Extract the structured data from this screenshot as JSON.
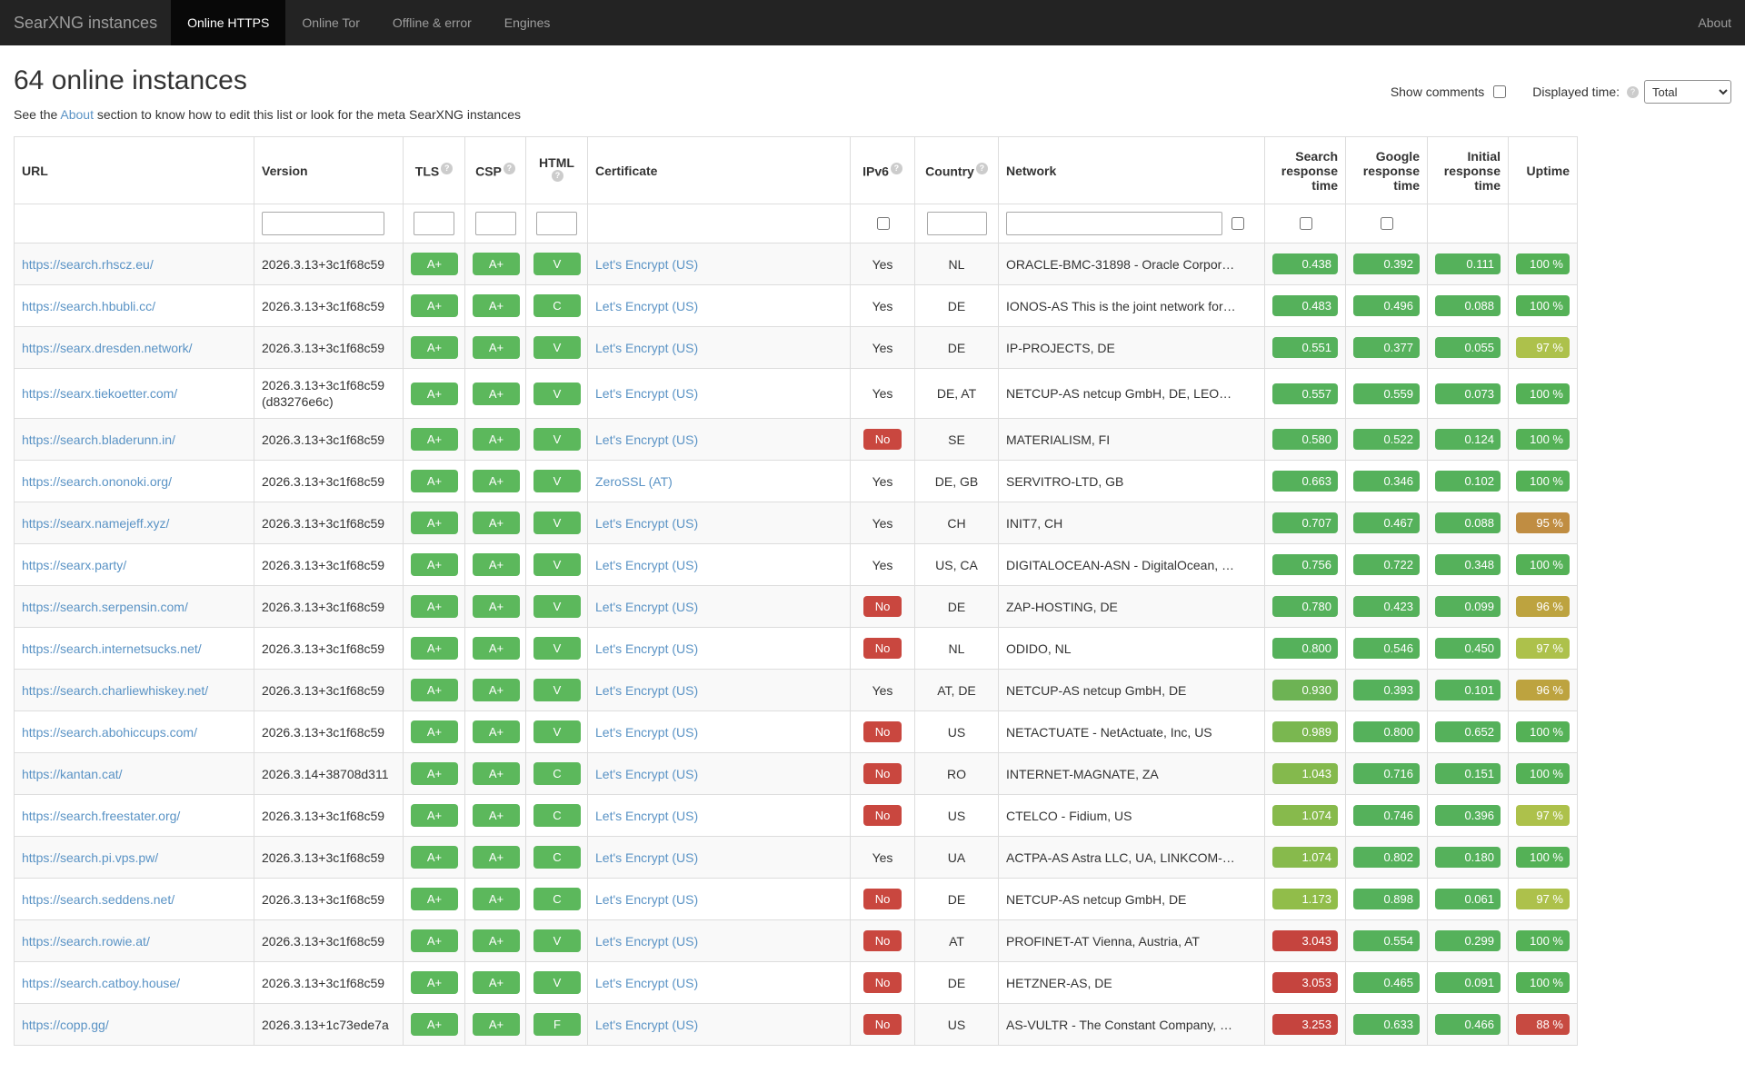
{
  "navbar": {
    "brand": "SearXNG instances",
    "tabs": [
      {
        "label": "Online HTTPS",
        "active": true
      },
      {
        "label": "Online Tor",
        "active": false
      },
      {
        "label": "Offline & error",
        "active": false
      },
      {
        "label": "Engines",
        "active": false
      }
    ],
    "about": "About"
  },
  "controls": {
    "show_comments_label": "Show comments",
    "displayed_time_label": "Displayed time:",
    "help_glyph": "?",
    "selected_time": "Total"
  },
  "header": {
    "title": "64 online instances",
    "subtitle_prefix": "See the ",
    "about_link": "About",
    "subtitle_suffix": " section to know how to edit this list or look for the meta SearXNG instances"
  },
  "colors": {
    "badge_green": "#5cb85c",
    "value_green": "#55b15b",
    "red": "#c5443e",
    "ipv6_no": "#c9473f"
  },
  "table": {
    "columns": [
      "URL",
      "Version",
      "TLS",
      "CSP",
      "HTML",
      "Certificate",
      "IPv6",
      "Country",
      "Network",
      "Search response time",
      "Google response time",
      "Initial response time",
      "Uptime"
    ],
    "rows": [
      {
        "url": "https://search.rhscz.eu/",
        "version": "2026.3.13+3c1f68c59",
        "version2": null,
        "tls": "A+",
        "csp": "A+",
        "html": "V",
        "cert": "Let's Encrypt (US)",
        "ipv6": "Yes",
        "country": "NL",
        "network": "ORACLE-BMC-31898 - Oracle Corpor…",
        "search": [
          "0.438",
          "#55b15b"
        ],
        "google": [
          "0.392",
          "#55b15b"
        ],
        "initial": [
          "0.111",
          "#55b15b"
        ],
        "uptime": [
          "100 %",
          "#54b156"
        ]
      },
      {
        "url": "https://search.hbubli.cc/",
        "version": "2026.3.13+3c1f68c59",
        "version2": null,
        "tls": "A+",
        "csp": "A+",
        "html": "C",
        "cert": "Let's Encrypt (US)",
        "ipv6": "Yes",
        "country": "DE",
        "network": "IONOS-AS This is the joint network for…",
        "search": [
          "0.483",
          "#55b15b"
        ],
        "google": [
          "0.496",
          "#55b15b"
        ],
        "initial": [
          "0.088",
          "#55b15b"
        ],
        "uptime": [
          "100 %",
          "#54b156"
        ]
      },
      {
        "url": "https://searx.dresden.network/",
        "version": "2026.3.13+3c1f68c59",
        "version2": null,
        "tls": "A+",
        "csp": "A+",
        "html": "V",
        "cert": "Let's Encrypt (US)",
        "ipv6": "Yes",
        "country": "DE",
        "network": "IP-PROJECTS, DE",
        "search": [
          "0.551",
          "#55b15b"
        ],
        "google": [
          "0.377",
          "#55b15b"
        ],
        "initial": [
          "0.055",
          "#55b15b"
        ],
        "uptime": [
          "97 %",
          "#adc14b"
        ]
      },
      {
        "url": "https://searx.tiekoetter.com/",
        "version": "2026.3.13+3c1f68c59",
        "version2": "(d83276e6c)",
        "tls": "A+",
        "csp": "A+",
        "html": "V",
        "cert": "Let's Encrypt (US)",
        "ipv6": "Yes",
        "country": "DE, AT",
        "network": "NETCUP-AS netcup GmbH, DE, LEO…",
        "search": [
          "0.557",
          "#55b15b"
        ],
        "google": [
          "0.559",
          "#55b15b"
        ],
        "initial": [
          "0.073",
          "#55b15b"
        ],
        "uptime": [
          "100 %",
          "#54b156"
        ]
      },
      {
        "url": "https://search.bladerunn.in/",
        "version": "2026.3.13+3c1f68c59",
        "version2": null,
        "tls": "A+",
        "csp": "A+",
        "html": "V",
        "cert": "Let's Encrypt (US)",
        "ipv6": "No",
        "country": "SE",
        "network": "MATERIALISM, FI",
        "search": [
          "0.580",
          "#55b15b"
        ],
        "google": [
          "0.522",
          "#55b15b"
        ],
        "initial": [
          "0.124",
          "#55b15b"
        ],
        "uptime": [
          "100 %",
          "#54b156"
        ]
      },
      {
        "url": "https://search.ononoki.org/",
        "version": "2026.3.13+3c1f68c59",
        "version2": null,
        "tls": "A+",
        "csp": "A+",
        "html": "V",
        "cert": "ZeroSSL (AT)",
        "ipv6": "Yes",
        "country": "DE, GB",
        "network": "SERVITRO-LTD, GB",
        "search": [
          "0.663",
          "#55b15b"
        ],
        "google": [
          "0.346",
          "#55b15b"
        ],
        "initial": [
          "0.102",
          "#55b15b"
        ],
        "uptime": [
          "100 %",
          "#54b156"
        ]
      },
      {
        "url": "https://searx.namejeff.xyz/",
        "version": "2026.3.13+3c1f68c59",
        "version2": null,
        "tls": "A+",
        "csp": "A+",
        "html": "V",
        "cert": "Let's Encrypt (US)",
        "ipv6": "Yes",
        "country": "CH",
        "network": "INIT7, CH",
        "search": [
          "0.707",
          "#55b15b"
        ],
        "google": [
          "0.467",
          "#55b15b"
        ],
        "initial": [
          "0.088",
          "#55b15b"
        ],
        "uptime": [
          "95 %",
          "#c08d42"
        ]
      },
      {
        "url": "https://searx.party/",
        "version": "2026.3.13+3c1f68c59",
        "version2": null,
        "tls": "A+",
        "csp": "A+",
        "html": "V",
        "cert": "Let's Encrypt (US)",
        "ipv6": "Yes",
        "country": "US, CA",
        "network": "DIGITALOCEAN-ASN - DigitalOcean, …",
        "search": [
          "0.756",
          "#55b15b"
        ],
        "google": [
          "0.722",
          "#55b15b"
        ],
        "initial": [
          "0.348",
          "#55b15b"
        ],
        "uptime": [
          "100 %",
          "#54b156"
        ]
      },
      {
        "url": "https://search.serpensin.com/",
        "version": "2026.3.13+3c1f68c59",
        "version2": null,
        "tls": "A+",
        "csp": "A+",
        "html": "V",
        "cert": "Let's Encrypt (US)",
        "ipv6": "No",
        "country": "DE",
        "network": "ZAP-HOSTING, DE",
        "search": [
          "0.780",
          "#55b15b"
        ],
        "google": [
          "0.423",
          "#55b15b"
        ],
        "initial": [
          "0.099",
          "#55b15b"
        ],
        "uptime": [
          "96 %",
          "#bda33f"
        ]
      },
      {
        "url": "https://search.internetsucks.net/",
        "version": "2026.3.13+3c1f68c59",
        "version2": null,
        "tls": "A+",
        "csp": "A+",
        "html": "V",
        "cert": "Let's Encrypt (US)",
        "ipv6": "No",
        "country": "NL",
        "network": "ODIDO, NL",
        "search": [
          "0.800",
          "#55b15b"
        ],
        "google": [
          "0.546",
          "#55b15b"
        ],
        "initial": [
          "0.450",
          "#55b15b"
        ],
        "uptime": [
          "97 %",
          "#adc14b"
        ]
      },
      {
        "url": "https://search.charliewhiskey.net/",
        "version": "2026.3.13+3c1f68c59",
        "version2": null,
        "tls": "A+",
        "csp": "A+",
        "html": "V",
        "cert": "Let's Encrypt (US)",
        "ipv6": "Yes",
        "country": "AT, DE",
        "network": "NETCUP-AS netcup GmbH, DE",
        "search": [
          "0.930",
          "#6db354"
        ],
        "google": [
          "0.393",
          "#55b15b"
        ],
        "initial": [
          "0.101",
          "#55b15b"
        ],
        "uptime": [
          "96 %",
          "#bda33f"
        ]
      },
      {
        "url": "https://search.abohiccups.com/",
        "version": "2026.3.13+3c1f68c59",
        "version2": null,
        "tls": "A+",
        "csp": "A+",
        "html": "V",
        "cert": "Let's Encrypt (US)",
        "ipv6": "No",
        "country": "US",
        "network": "NETACTUATE - NetActuate, Inc, US",
        "search": [
          "0.989",
          "#7ab750"
        ],
        "google": [
          "0.800",
          "#55b15b"
        ],
        "initial": [
          "0.652",
          "#55b15b"
        ],
        "uptime": [
          "100 %",
          "#54b156"
        ]
      },
      {
        "url": "https://kantan.cat/",
        "version": "2026.3.14+38708d311",
        "version2": null,
        "tls": "A+",
        "csp": "A+",
        "html": "C",
        "cert": "Let's Encrypt (US)",
        "ipv6": "No",
        "country": "RO",
        "network": "INTERNET-MAGNATE, ZA",
        "search": [
          "1.043",
          "#84b94d"
        ],
        "google": [
          "0.716",
          "#55b15b"
        ],
        "initial": [
          "0.151",
          "#55b15b"
        ],
        "uptime": [
          "100 %",
          "#54b156"
        ]
      },
      {
        "url": "https://search.freestater.org/",
        "version": "2026.3.13+3c1f68c59",
        "version2": null,
        "tls": "A+",
        "csp": "A+",
        "html": "C",
        "cert": "Let's Encrypt (US)",
        "ipv6": "No",
        "country": "US",
        "network": "CTELCO - Fidium, US",
        "search": [
          "1.074",
          "#87ba4c"
        ],
        "google": [
          "0.746",
          "#55b15b"
        ],
        "initial": [
          "0.396",
          "#55b15b"
        ],
        "uptime": [
          "97 %",
          "#adc14b"
        ]
      },
      {
        "url": "https://search.pi.vps.pw/",
        "version": "2026.3.13+3c1f68c59",
        "version2": null,
        "tls": "A+",
        "csp": "A+",
        "html": "C",
        "cert": "Let's Encrypt (US)",
        "ipv6": "Yes",
        "country": "UA",
        "network": "ACTPA-AS Astra LLC, UA, LINKCOM-…",
        "search": [
          "1.074",
          "#87ba4c"
        ],
        "google": [
          "0.802",
          "#55b15b"
        ],
        "initial": [
          "0.180",
          "#55b15b"
        ],
        "uptime": [
          "100 %",
          "#54b156"
        ]
      },
      {
        "url": "https://search.seddens.net/",
        "version": "2026.3.13+3c1f68c59",
        "version2": null,
        "tls": "A+",
        "csp": "A+",
        "html": "C",
        "cert": "Let's Encrypt (US)",
        "ipv6": "No",
        "country": "DE",
        "network": "NETCUP-AS netcup GmbH, DE",
        "search": [
          "1.173",
          "#91bd4a"
        ],
        "google": [
          "0.898",
          "#55b15b"
        ],
        "initial": [
          "0.061",
          "#55b15b"
        ],
        "uptime": [
          "97 %",
          "#adc14b"
        ]
      },
      {
        "url": "https://search.rowie.at/",
        "version": "2026.3.13+3c1f68c59",
        "version2": null,
        "tls": "A+",
        "csp": "A+",
        "html": "V",
        "cert": "Let's Encrypt (US)",
        "ipv6": "No",
        "country": "AT",
        "network": "PROFINET-AT Vienna, Austria, AT",
        "search": [
          "3.043",
          "#c5443e"
        ],
        "google": [
          "0.554",
          "#55b15b"
        ],
        "initial": [
          "0.299",
          "#55b15b"
        ],
        "uptime": [
          "100 %",
          "#54b156"
        ]
      },
      {
        "url": "https://search.catboy.house/",
        "version": "2026.3.13+3c1f68c59",
        "version2": null,
        "tls": "A+",
        "csp": "A+",
        "html": "V",
        "cert": "Let's Encrypt (US)",
        "ipv6": "No",
        "country": "DE",
        "network": "HETZNER-AS, DE",
        "search": [
          "3.053",
          "#c5443e"
        ],
        "google": [
          "0.465",
          "#55b15b"
        ],
        "initial": [
          "0.091",
          "#55b15b"
        ],
        "uptime": [
          "100 %",
          "#54b156"
        ]
      },
      {
        "url": "https://copp.gg/",
        "version": "2026.3.13+1c73ede7a",
        "version2": null,
        "tls": "A+",
        "csp": "A+",
        "html": "F",
        "cert": "Let's Encrypt (US)",
        "ipv6": "No",
        "country": "US",
        "network": "AS-VULTR - The Constant Company, …",
        "search": [
          "3.253",
          "#c5443e"
        ],
        "google": [
          "0.633",
          "#55b15b"
        ],
        "initial": [
          "0.466",
          "#55b15b"
        ],
        "uptime": [
          "88 %",
          "#c74a41"
        ]
      }
    ]
  }
}
